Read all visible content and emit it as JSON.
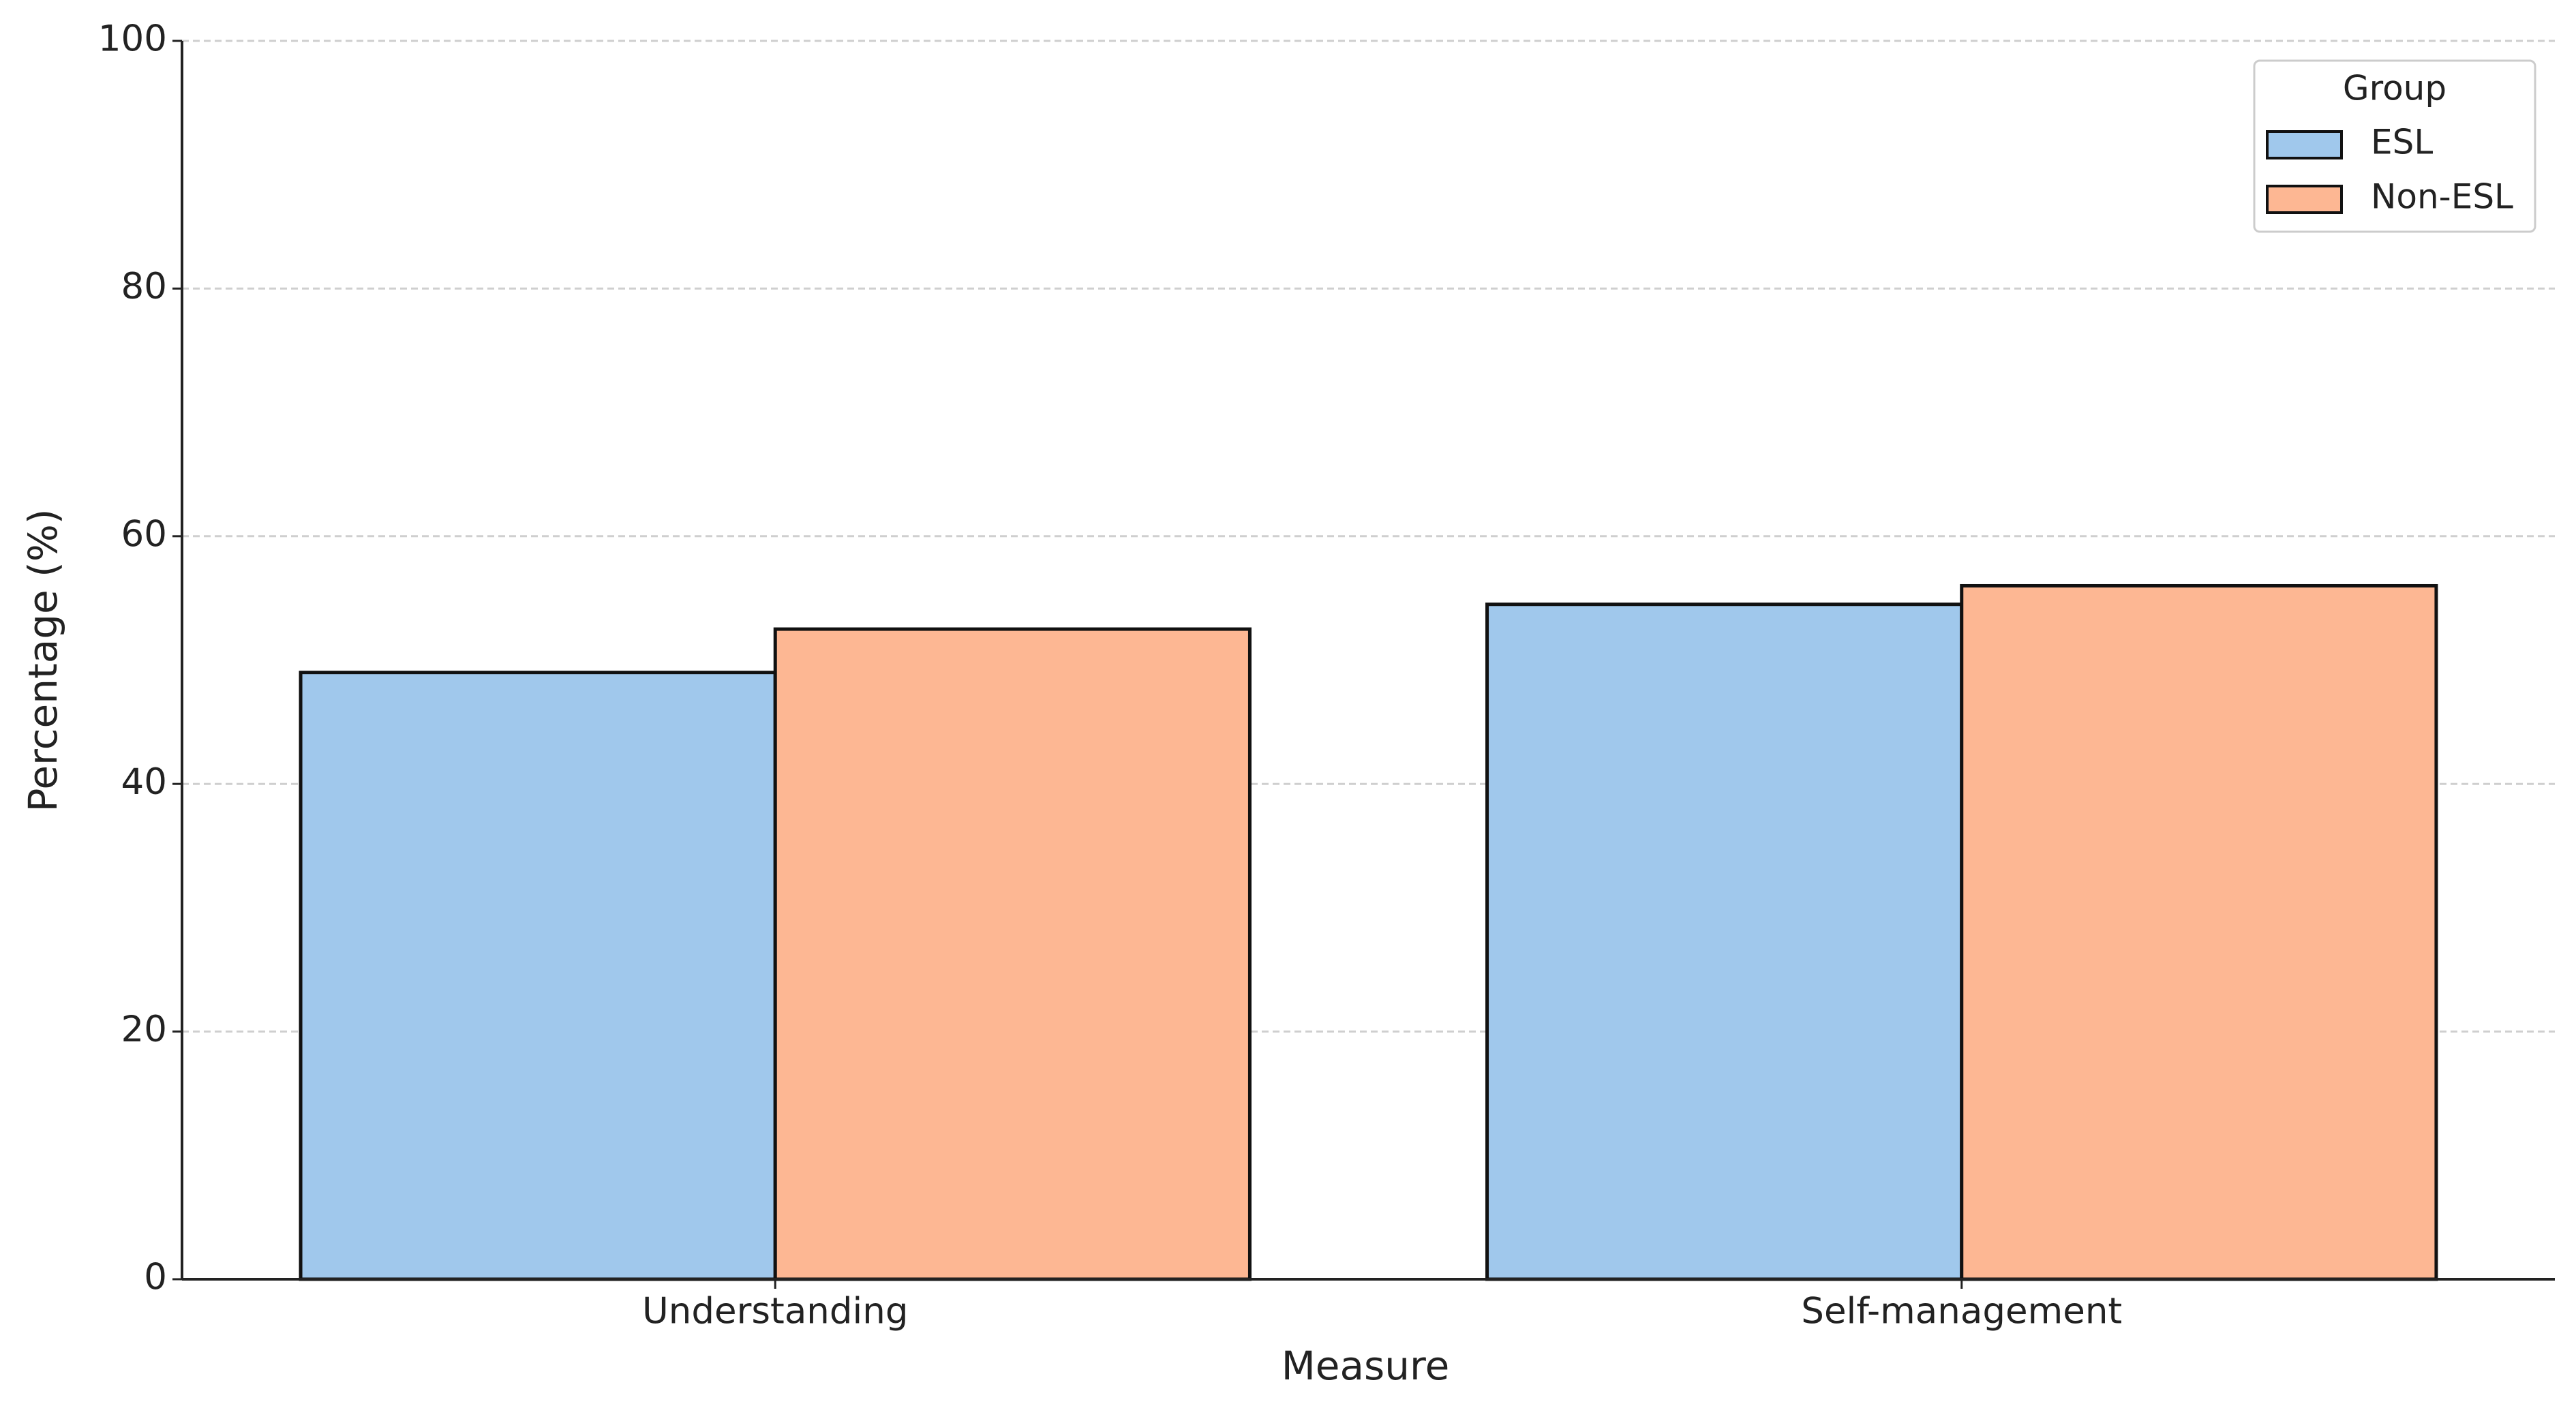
{
  "chart_data": {
    "type": "bar",
    "categories": [
      "Understanding",
      "Self-management"
    ],
    "series": [
      {
        "name": "ESL",
        "color": "#a0c8ec",
        "values": [
          49,
          54.5
        ]
      },
      {
        "name": "Non-ESL",
        "color": "#fdb793",
        "values": [
          52.5,
          56
        ]
      }
    ],
    "x_label": "Measure",
    "y_label": "Percentage (%)",
    "legend_title": "Group",
    "legend": "upper right",
    "ylim": [
      0,
      100
    ],
    "yticks": [
      0,
      20,
      40,
      60,
      80,
      100
    ],
    "grid": true
  }
}
